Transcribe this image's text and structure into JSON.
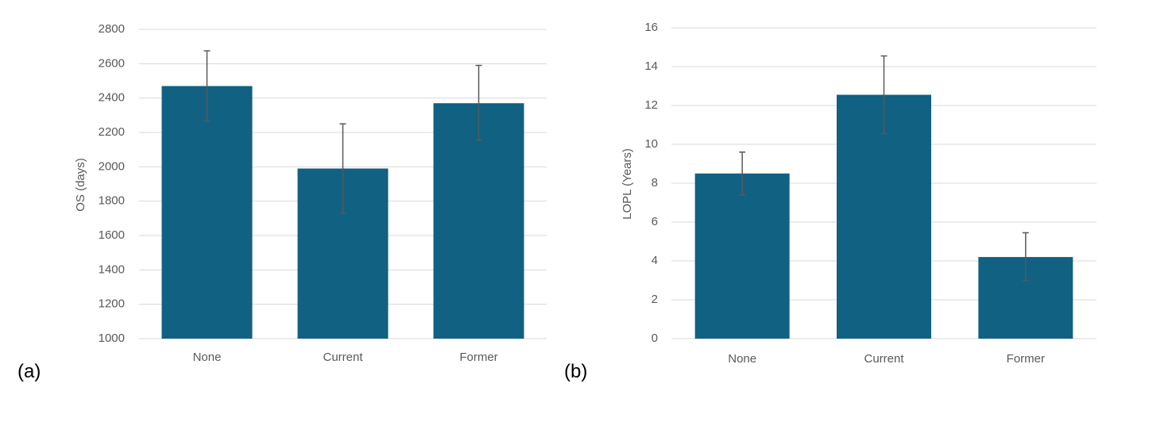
{
  "colors": {
    "bar": "#106182",
    "grid": "#d9d9d9",
    "error_bar": "#595959",
    "text": "#595959"
  },
  "chart_data": [
    {
      "panel_label": "(a)",
      "type": "bar",
      "categories": [
        "None",
        "Current",
        "Former"
      ],
      "values": [
        2470,
        1990,
        2370
      ],
      "error_low": [
        2265,
        1730,
        2155
      ],
      "error_high": [
        2675,
        2250,
        2590
      ],
      "title": "",
      "xlabel": "",
      "ylabel": "OS (days)",
      "ylim": [
        1000,
        2800
      ],
      "yticks": [
        "1000",
        "1200",
        "1400",
        "1600",
        "1800",
        "2000",
        "2200",
        "2400",
        "2600",
        "2800"
      ],
      "grid": true,
      "legend": "none"
    },
    {
      "panel_label": "(b)",
      "type": "bar",
      "categories": [
        "None",
        "Current",
        "Former"
      ],
      "values": [
        8.5,
        12.55,
        4.2
      ],
      "error_low": [
        7.4,
        10.55,
        3.0
      ],
      "error_high": [
        9.6,
        14.55,
        5.45
      ],
      "title": "",
      "xlabel": "",
      "ylabel": "LOPL (Years)",
      "ylim": [
        0,
        16
      ],
      "yticks": [
        "0",
        "2",
        "4",
        "6",
        "8",
        "10",
        "12",
        "14",
        "16"
      ],
      "grid": true,
      "legend": "none"
    }
  ]
}
